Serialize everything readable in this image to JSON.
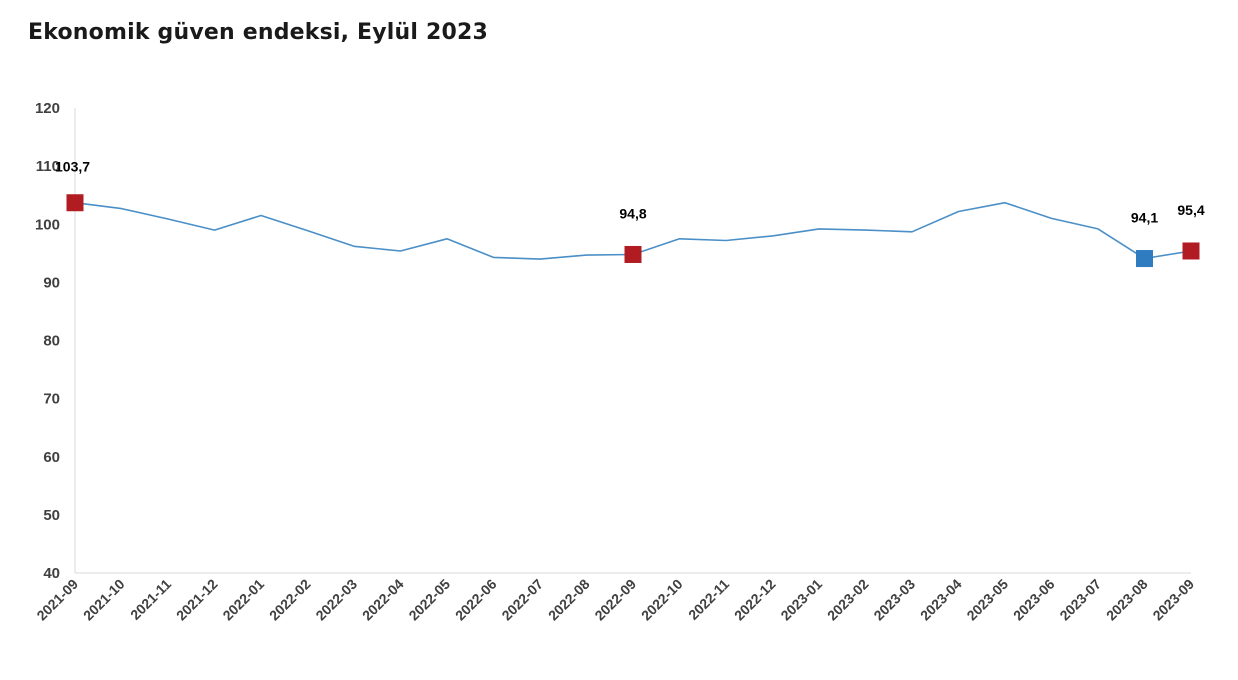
{
  "chart_data": {
    "type": "line",
    "title": "Ekonomik güven endeksi, Eylül 2023",
    "xlabel": "",
    "ylabel": "",
    "ylim": [
      40,
      120
    ],
    "yticks": [
      40,
      50,
      60,
      70,
      80,
      90,
      100,
      110,
      120
    ],
    "grid": false,
    "categories": [
      "2021-09",
      "2021-10",
      "2021-11",
      "2021-12",
      "2022-01",
      "2022-02",
      "2022-03",
      "2022-04",
      "2022-05",
      "2022-06",
      "2022-07",
      "2022-08",
      "2022-09",
      "2022-10",
      "2022-11",
      "2022-12",
      "2023-01",
      "2023-02",
      "2023-03",
      "2023-04",
      "2023-05",
      "2023-06",
      "2023-07",
      "2023-08",
      "2023-09"
    ],
    "series": [
      {
        "values": [
          103.7,
          102.7,
          100.9,
          99.0,
          101.5,
          98.9,
          96.2,
          95.4,
          97.5,
          94.3,
          94.0,
          94.7,
          94.8,
          97.5,
          97.2,
          98.0,
          99.2,
          99.0,
          98.7,
          102.2,
          103.7,
          101.0,
          99.2,
          94.1,
          95.4
        ],
        "color": "#4a8fc7"
      }
    ],
    "highlights": [
      {
        "index": 0,
        "label": "103,7",
        "color": "#b01c22"
      },
      {
        "index": 12,
        "label": "94,8",
        "color": "#b01c22"
      },
      {
        "index": 23,
        "label": "94,1",
        "color": "#2f7cc0"
      },
      {
        "index": 24,
        "label": "95,4",
        "color": "#b01c22"
      }
    ],
    "axis_color": "#d9d9d9"
  }
}
